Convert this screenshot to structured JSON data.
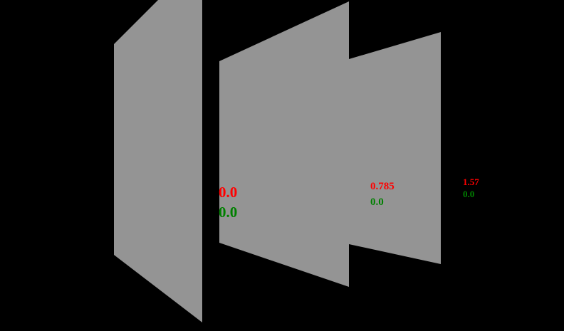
{
  "colors": {
    "background": "#000000",
    "panel_fill": "#949494",
    "label_top": "#ff0000",
    "label_bottom": "#008000"
  },
  "panels": [
    {
      "name": "panel-left"
    },
    {
      "name": "panel-middle"
    },
    {
      "name": "panel-right"
    }
  ],
  "labels": [
    {
      "top": "0.0",
      "bottom": "0.0"
    },
    {
      "top": "0.785",
      "bottom": "0.0"
    },
    {
      "top": "1.57",
      "bottom": "0.0"
    }
  ]
}
